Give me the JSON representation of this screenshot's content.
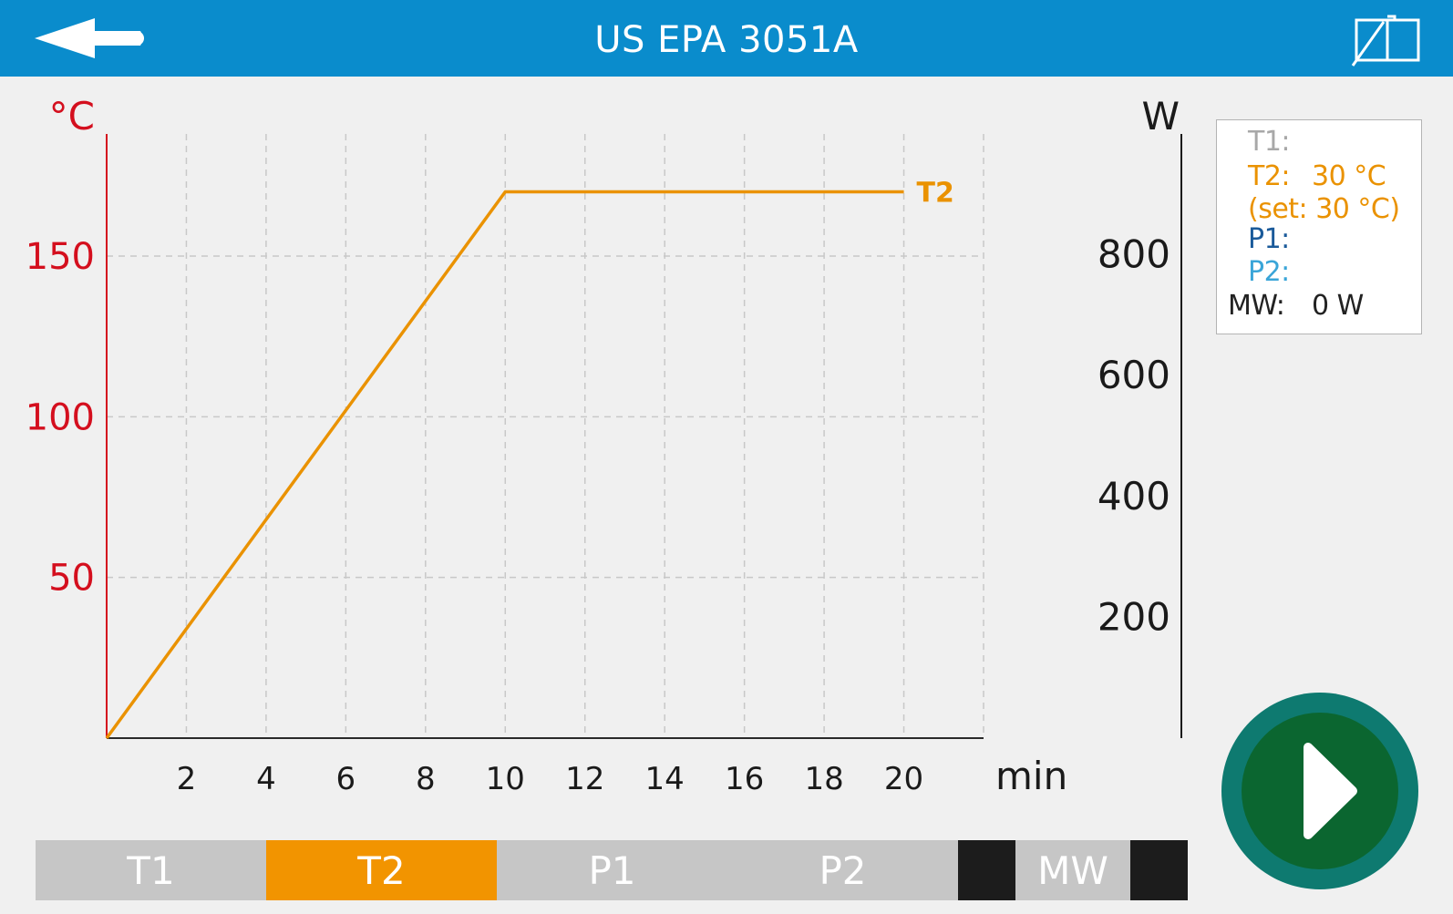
{
  "header": {
    "title": "US EPA 3051A",
    "back_icon": "back-arrow-icon",
    "manual_icon": "open-book-icon",
    "background_color": "#0a8ccc"
  },
  "legend": {
    "t1_label": "T1:",
    "t2_label": "T2:",
    "t2_value": "30 °C",
    "t2_set": "(set: 30 °C)",
    "p1_label": "P1:",
    "p2_label": "P2:",
    "mw_label": "MW:",
    "mw_value": "0 W",
    "colors": {
      "t1": "#a8a8a8",
      "t2": "#ea9200",
      "p1": "#1a5a9a",
      "p2": "#3aa5d8",
      "mw": "#222222"
    }
  },
  "tabs": [
    {
      "label": "T1",
      "active": false
    },
    {
      "label": "T2",
      "active": true
    },
    {
      "label": "P1",
      "active": false
    },
    {
      "label": "P2",
      "active": false
    },
    {
      "label": "MW",
      "active": false
    }
  ],
  "tab_colors": {
    "inactive": "#c6c6c6",
    "active": "#f29400",
    "separator": "#1c1c1c"
  },
  "play_button": {
    "icon": "play-icon",
    "ring_color": "#0e7a70",
    "fill_color": "#0b6630"
  },
  "chart_data": {
    "type": "line",
    "title": "",
    "xlabel": "min",
    "ylabel_left": "°C",
    "ylabel_right": "W",
    "x_ticks": [
      2,
      4,
      6,
      8,
      10,
      12,
      14,
      16,
      18,
      20
    ],
    "y_left_ticks": [
      50,
      100,
      150
    ],
    "y_right_ticks": [
      200,
      400,
      600,
      800
    ],
    "xlim": [
      0,
      22
    ],
    "ylim_left": [
      0,
      188
    ],
    "ylim_right": [
      0,
      1000
    ],
    "grid": true,
    "series": [
      {
        "name": "T2",
        "color": "#ea9200",
        "x": [
          0,
          10,
          20
        ],
        "y": [
          0,
          170,
          170
        ]
      }
    ],
    "colors": {
      "left_axis": "#d40f1e",
      "right_axis": "#1a1a1a",
      "grid": "#c8c8c8"
    }
  }
}
